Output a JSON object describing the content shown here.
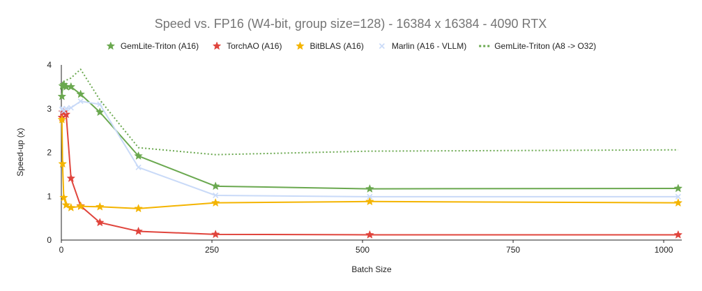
{
  "chart_data": {
    "type": "line",
    "title": "Speed vs. FP16 (W4-bit, group size=128) - 16384 x 16384 - 4090 RTX",
    "xlabel": "Batch Size",
    "ylabel": "Speed-up (x)",
    "xlim": [
      0,
      1030
    ],
    "ylim": [
      0,
      4
    ],
    "x_ticks": [
      0,
      250,
      500,
      750,
      1000
    ],
    "y_ticks": [
      0,
      1,
      2,
      3,
      4
    ],
    "x_tick_labels": [
      "0",
      "250",
      "500",
      "750",
      "1000"
    ],
    "y_tick_labels": [
      "0",
      "1",
      "2",
      "3",
      "4"
    ],
    "grid": false,
    "legend_position": "top",
    "series": [
      {
        "name": "GemLite-Triton (A16)",
        "color": "#6aa84f",
        "marker": "star",
        "dash": false,
        "x": [
          1,
          2,
          4,
          8,
          16,
          32,
          64,
          128,
          256,
          512,
          1024
        ],
        "y": [
          3.28,
          3.52,
          3.55,
          3.5,
          3.5,
          3.33,
          2.92,
          1.92,
          1.23,
          1.17,
          1.18
        ]
      },
      {
        "name": "TorchAO (A16)",
        "color": "#e0443c",
        "marker": "star",
        "dash": false,
        "x": [
          1,
          2,
          4,
          8,
          16,
          32,
          64,
          128,
          256,
          512,
          1024
        ],
        "y": [
          2.8,
          2.92,
          2.92,
          2.87,
          1.41,
          0.78,
          0.4,
          0.2,
          0.13,
          0.12,
          0.12
        ]
      },
      {
        "name": "BitBLAS (A16)",
        "color": "#f4b400",
        "marker": "star",
        "dash": false,
        "x": [
          1,
          2,
          4,
          8,
          16,
          32,
          64,
          128,
          256,
          512,
          1024
        ],
        "y": [
          2.75,
          1.74,
          0.97,
          0.8,
          0.74,
          0.77,
          0.76,
          0.72,
          0.85,
          0.88,
          0.85
        ]
      },
      {
        "name": "Marlin (A16 - VLLM)",
        "color": "#c9daf8",
        "marker": "cross",
        "dash": false,
        "x": [
          1,
          2,
          4,
          8,
          16,
          32,
          64,
          128,
          256,
          512,
          1024
        ],
        "y": [
          2.98,
          3.0,
          2.95,
          3.0,
          3.02,
          3.17,
          3.1,
          1.66,
          1.02,
          0.99,
          0.99
        ]
      },
      {
        "name": "GemLite-Triton (A8 -> O32)",
        "color": "#6aa84f",
        "marker": "none",
        "dash": true,
        "x": [
          1,
          2,
          4,
          8,
          16,
          32,
          64,
          128,
          256,
          512,
          1024
        ],
        "y": [
          3.55,
          3.6,
          3.62,
          3.65,
          3.7,
          3.9,
          3.2,
          2.11,
          1.95,
          2.03,
          2.06
        ]
      }
    ]
  }
}
